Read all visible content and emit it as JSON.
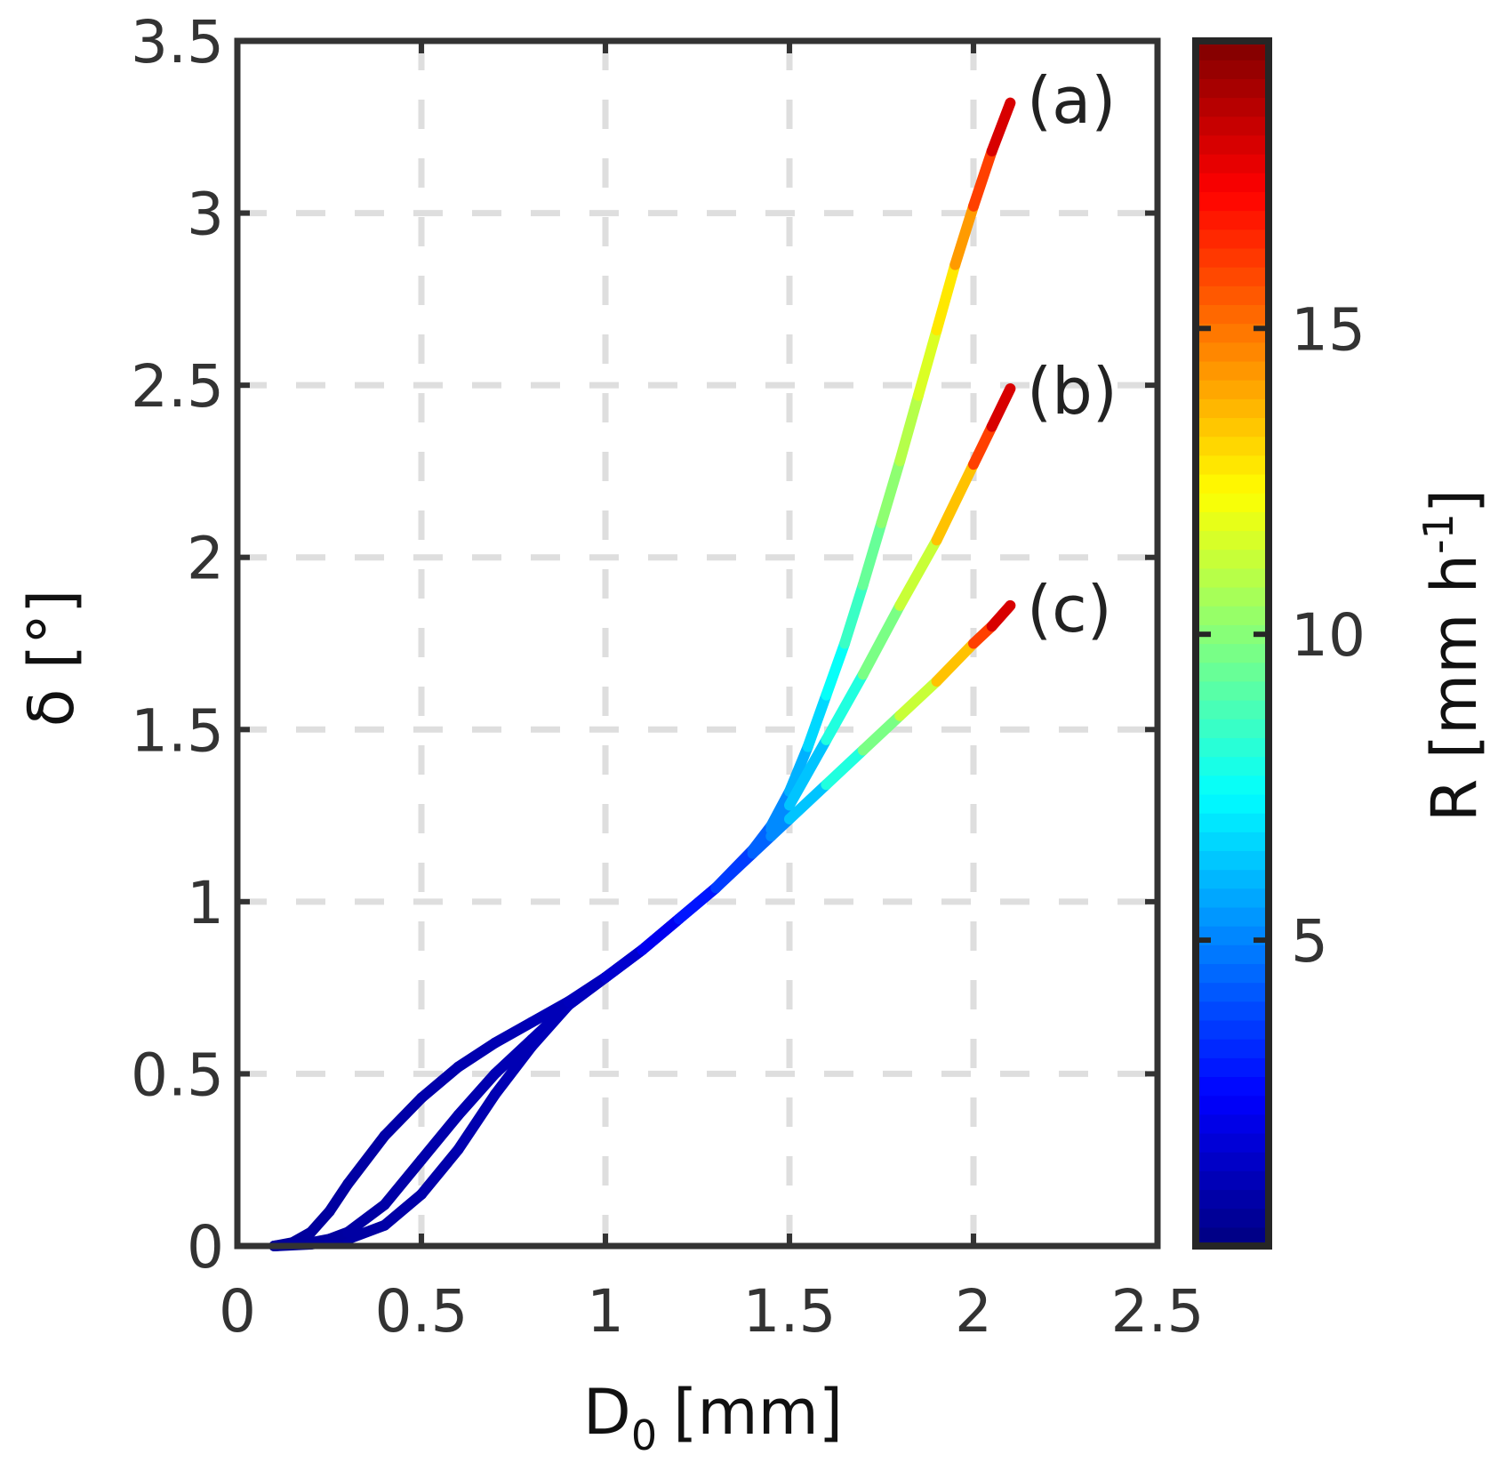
{
  "chart_data": {
    "type": "line",
    "title": "",
    "xlabel": "D",
    "xlabel_sub": "0",
    "xlabel_unit": "[mm]",
    "ylabel": "δ [°]",
    "xlim": [
      0,
      2.5
    ],
    "ylim": [
      0,
      3.5
    ],
    "grid": true,
    "xticks": [
      "0",
      "0.5",
      "1",
      "1.5",
      "2",
      "2.5"
    ],
    "xtick_values": [
      0,
      0.5,
      1,
      1.5,
      2,
      2.5
    ],
    "yticks": [
      "0",
      "0.5",
      "1",
      "1.5",
      "2",
      "2.5",
      "3",
      "3.5"
    ],
    "ytick_values": [
      0,
      0.5,
      1,
      1.5,
      2,
      2.5,
      3,
      3.5
    ],
    "colorbar": {
      "label": "R [mm h",
      "label_sup": "-1",
      "label_end": "]",
      "colormap": "jet",
      "clim": [
        0,
        19.7
      ],
      "ticks": [
        "5",
        "10",
        "15"
      ],
      "tick_values": [
        5,
        10,
        15
      ]
    },
    "color_variable": "R [mm h-1] as function of D0",
    "R_by_D": [
      [
        0.1,
        0.5
      ],
      [
        0.5,
        0.8
      ],
      [
        1.0,
        1.2
      ],
      [
        1.2,
        2.5
      ],
      [
        1.4,
        4
      ],
      [
        1.5,
        5.5
      ],
      [
        1.6,
        7
      ],
      [
        1.7,
        9
      ],
      [
        1.8,
        10.5
      ],
      [
        1.9,
        12
      ],
      [
        2.0,
        15
      ],
      [
        2.05,
        17
      ],
      [
        2.1,
        19
      ]
    ],
    "series": [
      {
        "name": "(a)",
        "points": [
          [
            0.1,
            0
          ],
          [
            0.2,
            0.005
          ],
          [
            0.3,
            0.02
          ],
          [
            0.4,
            0.06
          ],
          [
            0.5,
            0.15
          ],
          [
            0.6,
            0.28
          ],
          [
            0.7,
            0.44
          ],
          [
            0.8,
            0.58
          ],
          [
            0.9,
            0.7
          ],
          [
            1.0,
            0.78
          ],
          [
            1.1,
            0.86
          ],
          [
            1.2,
            0.95
          ],
          [
            1.3,
            1.04
          ],
          [
            1.4,
            1.15
          ],
          [
            1.45,
            1.22
          ],
          [
            1.5,
            1.32
          ],
          [
            1.55,
            1.45
          ],
          [
            1.6,
            1.6
          ],
          [
            1.65,
            1.75
          ],
          [
            1.7,
            1.92
          ],
          [
            1.75,
            2.1
          ],
          [
            1.8,
            2.28
          ],
          [
            1.85,
            2.47
          ],
          [
            1.9,
            2.66
          ],
          [
            1.95,
            2.85
          ],
          [
            2.0,
            3.02
          ],
          [
            2.05,
            3.18
          ],
          [
            2.1,
            3.32
          ]
        ]
      },
      {
        "name": "(b)",
        "points": [
          [
            0.1,
            0
          ],
          [
            0.2,
            0.01
          ],
          [
            0.25,
            0.02
          ],
          [
            0.3,
            0.04
          ],
          [
            0.4,
            0.12
          ],
          [
            0.5,
            0.25
          ],
          [
            0.6,
            0.38
          ],
          [
            0.7,
            0.5
          ],
          [
            0.8,
            0.6
          ],
          [
            0.9,
            0.7
          ],
          [
            1.0,
            0.78
          ],
          [
            1.1,
            0.86
          ],
          [
            1.2,
            0.95
          ],
          [
            1.3,
            1.04
          ],
          [
            1.4,
            1.15
          ],
          [
            1.45,
            1.21
          ],
          [
            1.5,
            1.28
          ],
          [
            1.6,
            1.47
          ],
          [
            1.7,
            1.66
          ],
          [
            1.8,
            1.86
          ],
          [
            1.9,
            2.05
          ],
          [
            2.0,
            2.27
          ],
          [
            2.05,
            2.38
          ],
          [
            2.1,
            2.49
          ]
        ]
      },
      {
        "name": "(c)",
        "points": [
          [
            0.1,
            0
          ],
          [
            0.15,
            0.01
          ],
          [
            0.2,
            0.04
          ],
          [
            0.25,
            0.1
          ],
          [
            0.3,
            0.18
          ],
          [
            0.4,
            0.32
          ],
          [
            0.5,
            0.43
          ],
          [
            0.6,
            0.52
          ],
          [
            0.7,
            0.59
          ],
          [
            0.8,
            0.65
          ],
          [
            0.9,
            0.71
          ],
          [
            1.0,
            0.78
          ],
          [
            1.1,
            0.86
          ],
          [
            1.2,
            0.95
          ],
          [
            1.3,
            1.04
          ],
          [
            1.4,
            1.14
          ],
          [
            1.45,
            1.19
          ],
          [
            1.5,
            1.24
          ],
          [
            1.6,
            1.34
          ],
          [
            1.7,
            1.44
          ],
          [
            1.8,
            1.54
          ],
          [
            1.9,
            1.64
          ],
          [
            2.0,
            1.75
          ],
          [
            2.05,
            1.8
          ],
          [
            2.1,
            1.86
          ]
        ]
      }
    ]
  }
}
